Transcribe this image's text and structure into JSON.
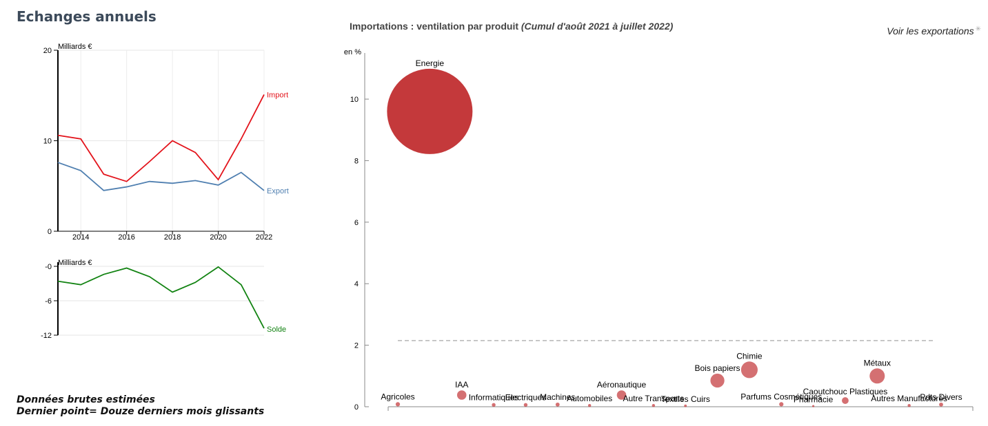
{
  "page": {
    "title": "Echanges annuels",
    "toggle_label": "Voir les exportations",
    "toggle_icon": "spinner-icon",
    "footnote_line1": "Données brutes estimées",
    "footnote_line2": "Dernier point= Douze derniers mois glissants"
  },
  "chart_data": [
    {
      "type": "line",
      "ylabel": "Milliards €",
      "x": [
        2013,
        2014,
        2015,
        2016,
        2017,
        2018,
        2019,
        2020,
        2021,
        2022
      ],
      "x_ticks": [
        2014,
        2016,
        2018,
        2020,
        2022
      ],
      "y_ticks": [
        0,
        10,
        20
      ],
      "ylim": [
        0,
        20
      ],
      "grid": true,
      "series": [
        {
          "name": "Import",
          "color": "#e3131b",
          "values": [
            10.6,
            10.2,
            6.3,
            5.5,
            7.7,
            10.0,
            8.7,
            5.7,
            10.2,
            15.1
          ]
        },
        {
          "name": "Export",
          "color": "#4f7fb0",
          "values": [
            7.6,
            6.7,
            4.5,
            4.9,
            5.5,
            5.3,
            5.6,
            5.1,
            6.5,
            4.5
          ]
        }
      ]
    },
    {
      "type": "line",
      "ylabel": "Milliards €",
      "x": [
        2013,
        2014,
        2015,
        2016,
        2017,
        2018,
        2019,
        2020,
        2021,
        2022
      ],
      "y_ticks": [
        0,
        -6,
        -12
      ],
      "y_tick_labels": [
        "-0",
        "-6",
        "-12"
      ],
      "ylim": [
        -12,
        0
      ],
      "grid": true,
      "series": [
        {
          "name": "Solde",
          "color": "#128312",
          "values": [
            -2.6,
            -3.2,
            -1.4,
            -0.3,
            -1.8,
            -4.5,
            -2.8,
            -0.1,
            -3.2,
            -10.8
          ]
        }
      ]
    },
    {
      "type": "scatter",
      "title": "Importations : ventilation par produit",
      "subtitle": "(Cumul d'août 2021 à juillet 2022)",
      "ylabel": "en %",
      "y_ticks": [
        0,
        2,
        4,
        6,
        8,
        10
      ],
      "ylim": [
        0,
        11.5
      ],
      "reference_line": 2.15,
      "bubble_color": "#c4393b",
      "points": [
        {
          "label": "Agricoles",
          "rank": 1,
          "value": 0.08,
          "size": 0.08
        },
        {
          "label": "IAA",
          "rank": 3,
          "value": 0.38,
          "size": 0.38
        },
        {
          "label": "Informatiques",
          "rank": 4,
          "value": 0.06,
          "size": 0.06
        },
        {
          "label": "Electriques",
          "rank": 5,
          "value": 0.06,
          "size": 0.06
        },
        {
          "label": "Machines",
          "rank": 6,
          "value": 0.07,
          "size": 0.07
        },
        {
          "label": "Automobiles",
          "rank": 7,
          "value": 0.04,
          "size": 0.04
        },
        {
          "label": "Aéronautique",
          "rank": 8,
          "value": 0.38,
          "size": 0.38
        },
        {
          "label": "Autre Transports",
          "rank": 9,
          "value": 0.04,
          "size": 0.04
        },
        {
          "label": "Textiles Cuirs",
          "rank": 10,
          "value": 0.03,
          "size": 0.03
        },
        {
          "label": "Bois papiers",
          "rank": 11,
          "value": 0.85,
          "size": 0.85
        },
        {
          "label": "Chimie",
          "rank": 12,
          "value": 1.2,
          "size": 1.2
        },
        {
          "label": "Parfums Cosmétiques",
          "rank": 13,
          "value": 0.08,
          "size": 0.08
        },
        {
          "label": "Pharmacie",
          "rank": 14,
          "value": 0.02,
          "size": 0.02
        },
        {
          "label": "Caoutchouc Plastiques",
          "rank": 15,
          "value": 0.2,
          "size": 0.2
        },
        {
          "label": "Métaux",
          "rank": 16,
          "value": 1.0,
          "size": 1.0
        },
        {
          "label": "Autres Manufacturés",
          "rank": 17,
          "value": 0.04,
          "size": 0.04
        },
        {
          "label": "Pdts Divers",
          "rank": 18,
          "value": 0.07,
          "size": 0.07
        },
        {
          "label": "Energie",
          "rank": 2,
          "value": 9.6,
          "size": 9.6
        }
      ]
    }
  ]
}
